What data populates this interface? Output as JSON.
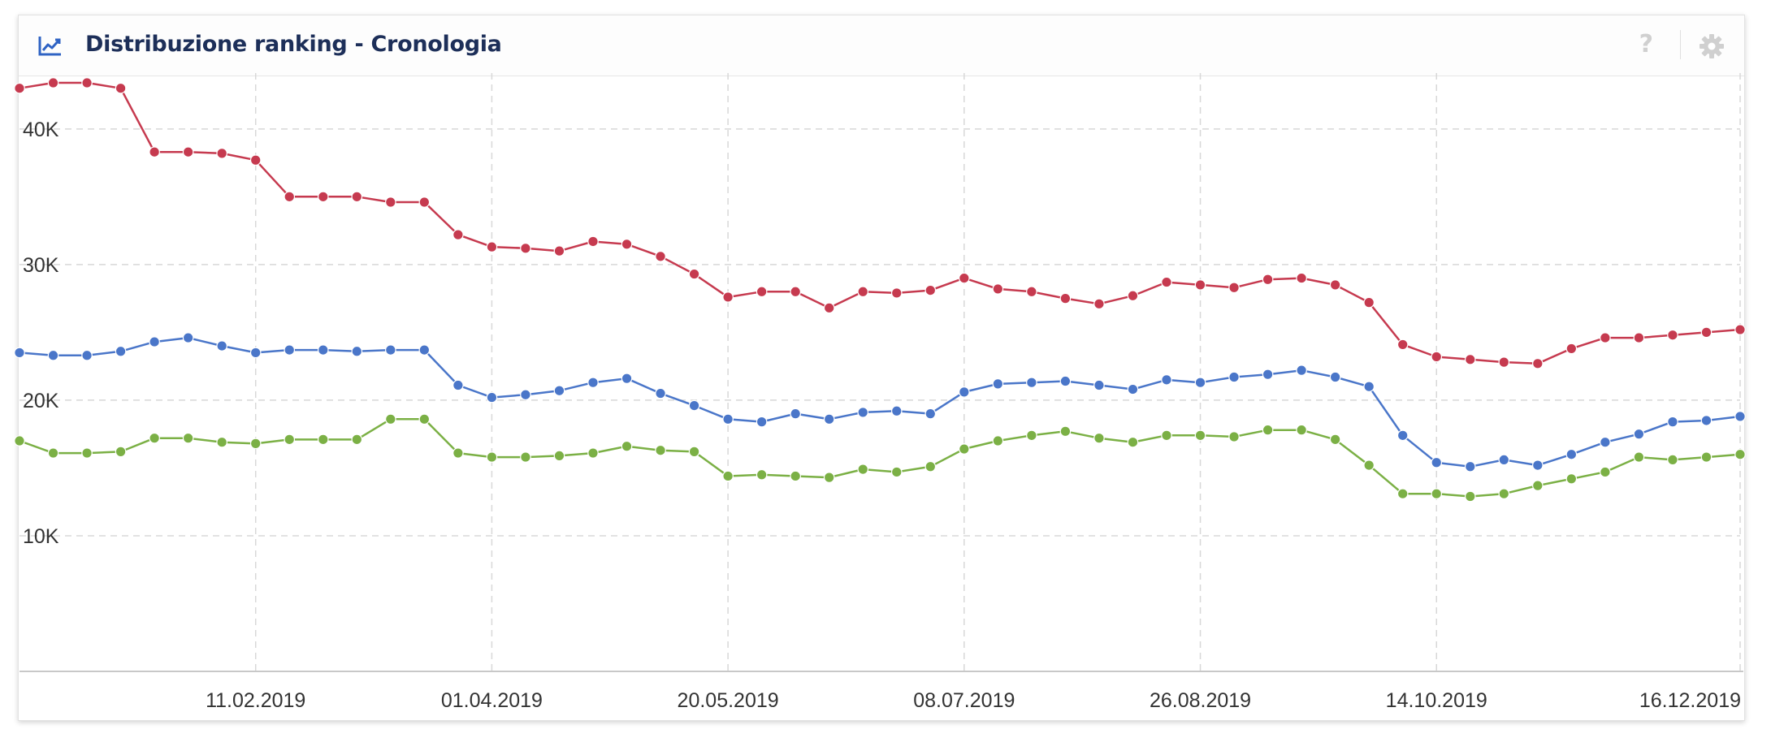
{
  "header": {
    "title": "Distribuzione ranking - Cronologia",
    "icon": "line-chart-icon",
    "help_symbol": "?",
    "settings_icon": "gear-icon"
  },
  "colors": {
    "red": "#c63a4f",
    "blue": "#4a76c9",
    "green": "#7bb045",
    "title": "#1d2f59",
    "grid": "#d8d8d8"
  },
  "chart_data": {
    "type": "line",
    "title": "",
    "xlabel": "",
    "ylabel": "",
    "ylim": [
      0,
      44000
    ],
    "yticks": [
      {
        "value": 10000,
        "label": "10K"
      },
      {
        "value": 20000,
        "label": "20K"
      },
      {
        "value": 30000,
        "label": "30K"
      },
      {
        "value": 40000,
        "label": "40K"
      }
    ],
    "xticks": [
      "11.02.2019",
      "01.04.2019",
      "20.05.2019",
      "08.07.2019",
      "26.08.2019",
      "14.10.2019",
      "16.12.2019"
    ],
    "xtick_positions": [
      7,
      14,
      21,
      28,
      35,
      42,
      51
    ],
    "x_count": 52,
    "grid": true,
    "legend": "none",
    "series": [
      {
        "color": "#c63a4f",
        "values": [
          43000,
          43400,
          43400,
          43000,
          38300,
          38300,
          38200,
          37700,
          35000,
          35000,
          35000,
          34600,
          34600,
          32200,
          31300,
          31200,
          31000,
          31700,
          31500,
          30600,
          29300,
          27600,
          28000,
          28000,
          26800,
          28000,
          27900,
          28100,
          29000,
          28200,
          28000,
          27500,
          27100,
          27700,
          28700,
          28500,
          28300,
          28900,
          29000,
          28500,
          27200,
          24100,
          23200,
          23000,
          22800,
          22700,
          23800,
          24600,
          24600,
          24800,
          25000,
          25200
        ]
      },
      {
        "color": "#4a76c9",
        "values": [
          23500,
          23300,
          23300,
          23600,
          24300,
          24600,
          24000,
          23500,
          23700,
          23700,
          23600,
          23700,
          23700,
          21100,
          20200,
          20400,
          20700,
          21300,
          21600,
          20500,
          19600,
          18600,
          18400,
          19000,
          18600,
          19100,
          19200,
          19000,
          20600,
          21200,
          21300,
          21400,
          21100,
          20800,
          21500,
          21300,
          21700,
          21900,
          22200,
          21700,
          21000,
          17400,
          15400,
          15100,
          15600,
          15200,
          16000,
          16900,
          17500,
          18400,
          18500,
          18800
        ]
      },
      {
        "color": "#7bb045",
        "values": [
          17000,
          16100,
          16100,
          16200,
          17200,
          17200,
          16900,
          16800,
          17100,
          17100,
          17100,
          18600,
          18600,
          16100,
          15800,
          15800,
          15900,
          16100,
          16600,
          16300,
          16200,
          14400,
          14500,
          14400,
          14300,
          14900,
          14700,
          15100,
          16400,
          17000,
          17400,
          17700,
          17200,
          16900,
          17400,
          17400,
          17300,
          17800,
          17800,
          17100,
          15200,
          13100,
          13100,
          12900,
          13100,
          13700,
          14200,
          14700,
          15800,
          15600,
          15800,
          16000
        ]
      }
    ]
  }
}
